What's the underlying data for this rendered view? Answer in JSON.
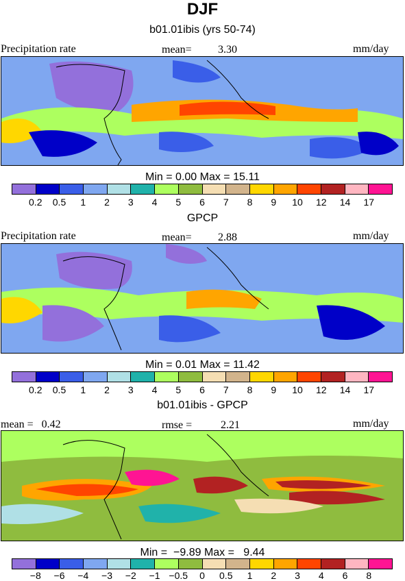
{
  "title": "DJF",
  "colors": {
    "abs": [
      "#9370db",
      "#0000c8",
      "#3a5ee8",
      "#7fa7f0",
      "#b0e0e6",
      "#20b2aa",
      "#adff5f",
      "#8fbc3f",
      "#f5deb3",
      "#d2b48c",
      "#ffd700",
      "#ffa500",
      "#ff4500",
      "#b22222",
      "#ffb6c1",
      "#ff1493"
    ],
    "diff": [
      "#9370db",
      "#0000c8",
      "#3a5ee8",
      "#7fa7f0",
      "#b0e0e6",
      "#20b2aa",
      "#adff5f",
      "#8fbc3f",
      "#f5deb3",
      "#d2b48c",
      "#ffd700",
      "#ffa500",
      "#ff4500",
      "#b22222",
      "#ffb6c1",
      "#ff1493"
    ]
  },
  "panels": [
    {
      "title": "b01.01ibis (yrs 50-74)",
      "left_label": "Precipitation rate",
      "mean_label": "mean=",
      "mean_value": "3.30",
      "units": "mm/day",
      "minmax": "Min =   0.00 Max =  15.11",
      "ticks": [
        "0.2",
        "0.5",
        "1",
        "2",
        "3",
        "4",
        "5",
        "6",
        "7",
        "8",
        "9",
        "10",
        "12",
        "14",
        "17"
      ],
      "scale": "abs"
    },
    {
      "title": "GPCP",
      "left_label": "Precipitation rate",
      "mean_label": "mean=",
      "mean_value": "2.88",
      "units": "mm/day",
      "minmax": "Min =   0.01 Max =  11.42",
      "ticks": [
        "0.2",
        "0.5",
        "1",
        "2",
        "3",
        "4",
        "5",
        "6",
        "7",
        "8",
        "9",
        "10",
        "12",
        "14",
        "17"
      ],
      "scale": "abs"
    },
    {
      "title": "b01.01ibis - GPCP",
      "left_label": "mean =   0.42",
      "mean_label": "rmse =",
      "mean_value": "2.21",
      "units": "mm/day",
      "minmax": "Min =  −9.89 Max =   9.44",
      "ticks": [
        "−8",
        "−6",
        "−4",
        "−3",
        "−2",
        "−1",
        "−0.5",
        "0",
        "0.5",
        "1",
        "2",
        "3",
        "4",
        "6",
        "8"
      ],
      "scale": "diff"
    }
  ]
}
